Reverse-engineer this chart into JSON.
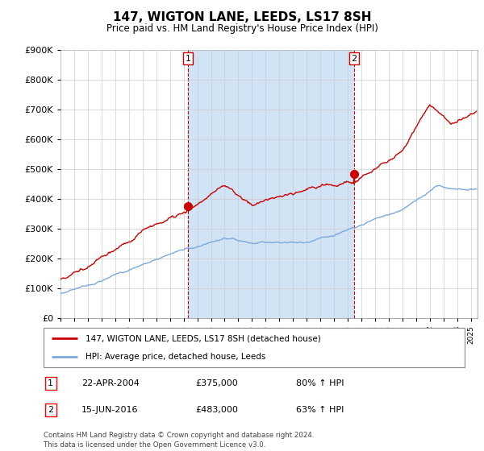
{
  "title": "147, WIGTON LANE, LEEDS, LS17 8SH",
  "subtitle": "Price paid vs. HM Land Registry's House Price Index (HPI)",
  "legend_line1": "147, WIGTON LANE, LEEDS, LS17 8SH (detached house)",
  "legend_line2": "HPI: Average price, detached house, Leeds",
  "purchase1": {
    "date": "22-APR-2004",
    "price": 375000,
    "year": 2004.31,
    "label": "1",
    "pct": "80% ↑ HPI"
  },
  "purchase2": {
    "date": "15-JUN-2016",
    "price": 483000,
    "year": 2016.46,
    "label": "2",
    "pct": "63% ↑ HPI"
  },
  "footnote1": "Contains HM Land Registry data © Crown copyright and database right 2024.",
  "footnote2": "This data is licensed under the Open Government Licence v3.0.",
  "hpi_color": "#7aaadd",
  "price_color": "#cc0000",
  "marker_color": "#cc0000",
  "dashed_color": "#cc0000",
  "fill_color": "#d0e4f5",
  "ylim": [
    0,
    900000
  ],
  "xlim_start": 1995,
  "xlim_end": 2025.5,
  "background_color": "#ffffff",
  "grid_color": "#cccccc"
}
